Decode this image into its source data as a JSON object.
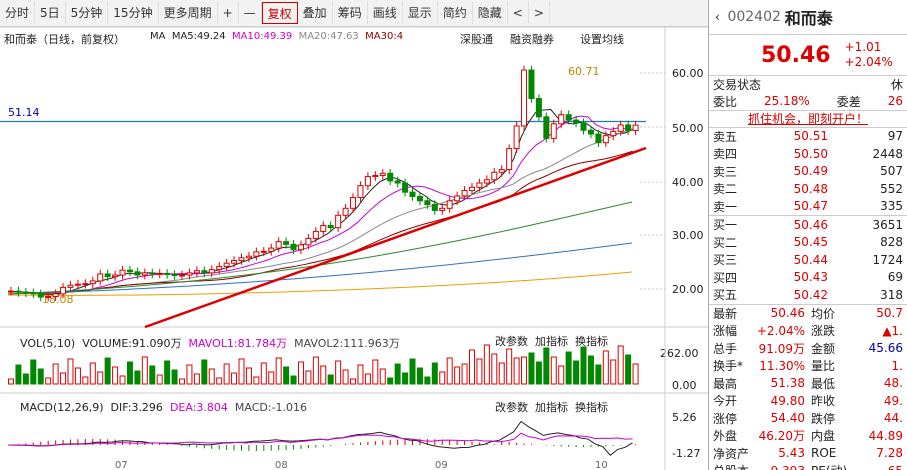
{
  "toolbar": {
    "items": [
      "分时",
      "5日",
      "5分钟",
      "15分钟",
      "更多周期",
      "+",
      "—",
      "复权",
      "叠加",
      "筹码",
      "画线",
      "显示",
      "简约",
      "隐藏",
      "<",
      ">"
    ]
  },
  "chart": {
    "title": "和而泰（日线，前复权）",
    "ma_labels": {
      "ma": "MA",
      "ma5": "MA5:49.24",
      "ma10": "MA10:49.39",
      "ma20": "MA20:47.63",
      "ma30": "MA30:4"
    },
    "badges": [
      "深股通",
      "融资融券",
      "设置均线"
    ],
    "price_line": "51.14",
    "high_label": "60.71",
    "low_label": "18.08",
    "y_ticks": [
      "60.00",
      "50.00",
      "40.00",
      "30.00",
      "20.00"
    ],
    "vol_label": "VOL(5,10)",
    "vol_val": "VOLUME:91.090万",
    "mavol1": "MAVOL1:81.784万",
    "mavol2": "MAVOL2:111.963万",
    "vol_ticks": [
      "262.00",
      "0.00"
    ],
    "macd_label": "MACD(12,26,9)",
    "dif": "DIF:3.296",
    "dea": "DEA:3.804",
    "macd": "MACD:-1.016",
    "macd_ticks": [
      "5.26",
      "-1.27"
    ],
    "sub_actions": [
      "改参数",
      "加指标",
      "换指标"
    ],
    "date_labels": [
      "07",
      "08",
      "09",
      "10"
    ]
  },
  "quote": {
    "code": "002402",
    "name": "和而泰",
    "price": "50.46",
    "change": "+1.01",
    "pct": "+2.04%",
    "status_label": "交易状态",
    "status_val": "休",
    "wb_label": "委比",
    "wb_val": "25.18%",
    "wc_label": "委差",
    "wc_val": "26",
    "promo": "抓住机会，即刻开户！",
    "sell": [
      [
        "卖五",
        "50.51",
        "97"
      ],
      [
        "卖四",
        "50.50",
        "2448"
      ],
      [
        "卖三",
        "50.49",
        "507"
      ],
      [
        "卖二",
        "50.48",
        "552"
      ],
      [
        "卖一",
        "50.47",
        "335"
      ]
    ],
    "buy": [
      [
        "买一",
        "50.46",
        "3651"
      ],
      [
        "买二",
        "50.45",
        "828"
      ],
      [
        "买三",
        "50.44",
        "1724"
      ],
      [
        "买四",
        "50.43",
        "69"
      ],
      [
        "买五",
        "50.42",
        "318"
      ]
    ],
    "stats": [
      [
        "最新",
        "50.46",
        "均价",
        "50.7"
      ],
      [
        "涨幅",
        "+2.04%",
        "涨跌",
        "▲1."
      ],
      [
        "总手",
        "91.09万",
        "金额",
        "45.66"
      ],
      [
        "换手*",
        "11.30%",
        "量比",
        "1."
      ],
      [
        "最高",
        "51.38",
        "最低",
        "48."
      ],
      [
        "今开",
        "49.80",
        "昨收",
        "49."
      ],
      [
        "涨停",
        "54.40",
        "跌停",
        "44."
      ],
      [
        "外盘",
        "46.20万",
        "内盘",
        "44.89"
      ],
      [
        "净资产",
        "5.43",
        "ROE",
        "7.28"
      ],
      [
        "总股本",
        "9.393",
        "PE(动)",
        "65"
      ]
    ]
  },
  "chart_data": {
    "type": "candlestick",
    "closes": [
      19.6,
      19.4,
      19.3,
      19.1,
      18.5,
      18.6,
      19.1,
      20.3,
      20.7,
      20.9,
      21.0,
      21.5,
      22.8,
      22.3,
      22.6,
      23.5,
      23.2,
      22.6,
      23.0,
      22.8,
      22.9,
      22.7,
      22.5,
      22.6,
      23.0,
      23.4,
      23.0,
      23.6,
      24.2,
      24.8,
      25.3,
      25.8,
      26.1,
      26.9,
      27.0,
      27.6,
      28.8,
      28.3,
      27.3,
      28.2,
      29.4,
      30.7,
      31.8,
      31.4,
      33.7,
      35.0,
      37.0,
      39.2,
      40.9,
      41.1,
      41.5,
      40.1,
      39.7,
      38.0,
      37.2,
      36.4,
      35.7,
      34.6,
      35.0,
      36.4,
      37.3,
      38.3,
      38.9,
      39.7,
      40.3,
      41.7,
      42.2,
      46.1,
      50.3,
      60.7,
      55.4,
      52.0,
      48.0,
      50.7,
      52.4,
      51.4,
      50.9,
      49.5,
      48.8,
      47.2,
      48.5,
      49.3,
      50.5,
      49.45,
      50.46
    ]
  }
}
